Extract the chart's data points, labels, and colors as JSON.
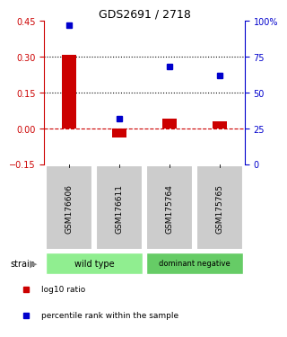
{
  "title": "GDS2691 / 2718",
  "samples": [
    "GSM176606",
    "GSM176611",
    "GSM175764",
    "GSM175765"
  ],
  "log10_ratio": [
    0.31,
    -0.04,
    0.04,
    0.03
  ],
  "percentile_rank": [
    97,
    32,
    68,
    62
  ],
  "left_ylim": [
    -0.15,
    0.45
  ],
  "right_ylim": [
    0,
    100
  ],
  "left_yticks": [
    -0.15,
    0.0,
    0.15,
    0.3,
    0.45
  ],
  "right_yticks": [
    0,
    25,
    50,
    75,
    100
  ],
  "right_yticklabels": [
    "0",
    "25",
    "50",
    "75",
    "100%"
  ],
  "hlines": [
    0.15,
    0.3
  ],
  "bar_color": "#cc0000",
  "square_color": "#0000cc",
  "zero_line_color": "#cc0000",
  "groups": [
    {
      "label": "wild type",
      "samples": [
        0,
        1
      ],
      "color": "#90ee90"
    },
    {
      "label": "dominant negative",
      "samples": [
        2,
        3
      ],
      "color": "#66cc66"
    }
  ],
  "legend_items": [
    {
      "color": "#cc0000",
      "label": "log10 ratio"
    },
    {
      "color": "#0000cc",
      "label": "percentile rank within the sample"
    }
  ],
  "strain_label": "strain",
  "arrow_color": "#888888",
  "sample_box_color": "#cccccc",
  "sample_box_edge": "#ffffff",
  "background_color": "#ffffff"
}
